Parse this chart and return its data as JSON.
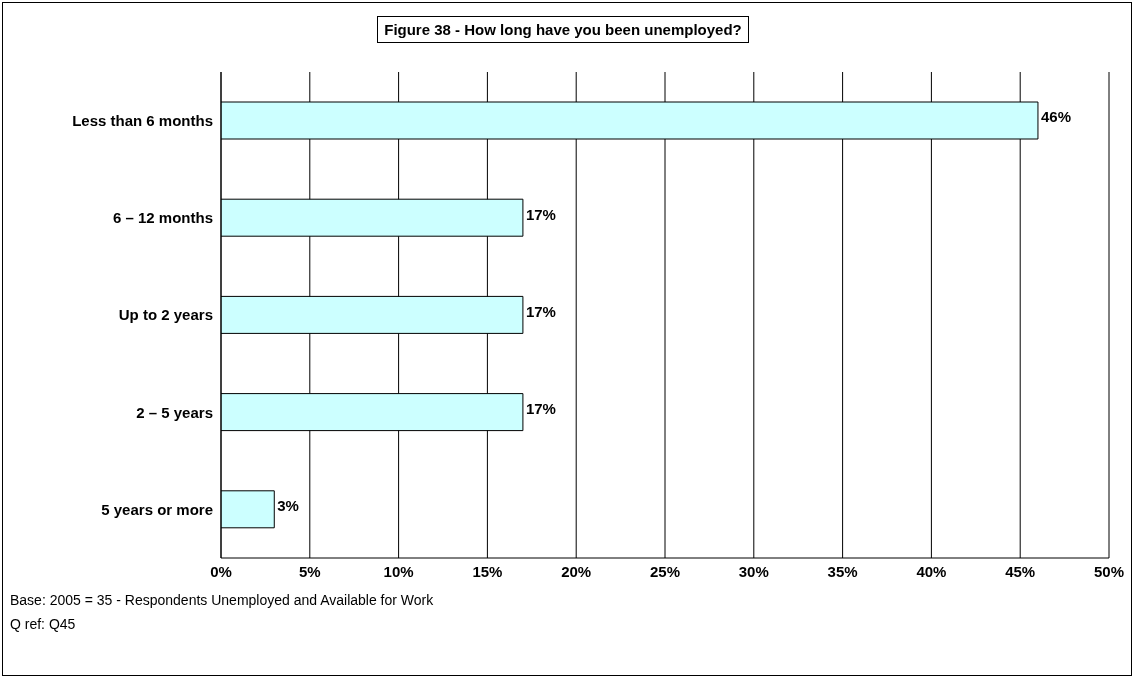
{
  "chart_data": {
    "type": "bar",
    "orientation": "horizontal",
    "title": "Figure 38 - How long have you been unemployed?",
    "categories": [
      "Less than 6 months",
      "6 – 12 months",
      "Up to 2 years",
      "2 – 5 years",
      "5 years or more"
    ],
    "values": [
      46,
      17,
      17,
      17,
      3
    ],
    "value_labels": [
      "46%",
      "17%",
      "17%",
      "17%",
      "3%"
    ],
    "color": "#ccffff",
    "xlim": [
      0,
      50
    ],
    "xticks": [
      {
        "value": 0,
        "label": "0%"
      },
      {
        "value": 5,
        "label": "5%"
      },
      {
        "value": 10,
        "label": "10%"
      },
      {
        "value": 15,
        "label": "15%"
      },
      {
        "value": 20,
        "label": "20%"
      },
      {
        "value": 25,
        "label": "25%"
      },
      {
        "value": 30,
        "label": "30%"
      },
      {
        "value": 35,
        "label": "35%"
      },
      {
        "value": 40,
        "label": "40%"
      },
      {
        "value": 45,
        "label": "45%"
      },
      {
        "value": 50,
        "label": "50%"
      }
    ],
    "grid": "x",
    "legend": false,
    "annotations": [
      "Base: 2005 = 35 - Respondents Unemployed and Available for Work",
      "Q ref: Q45"
    ]
  }
}
